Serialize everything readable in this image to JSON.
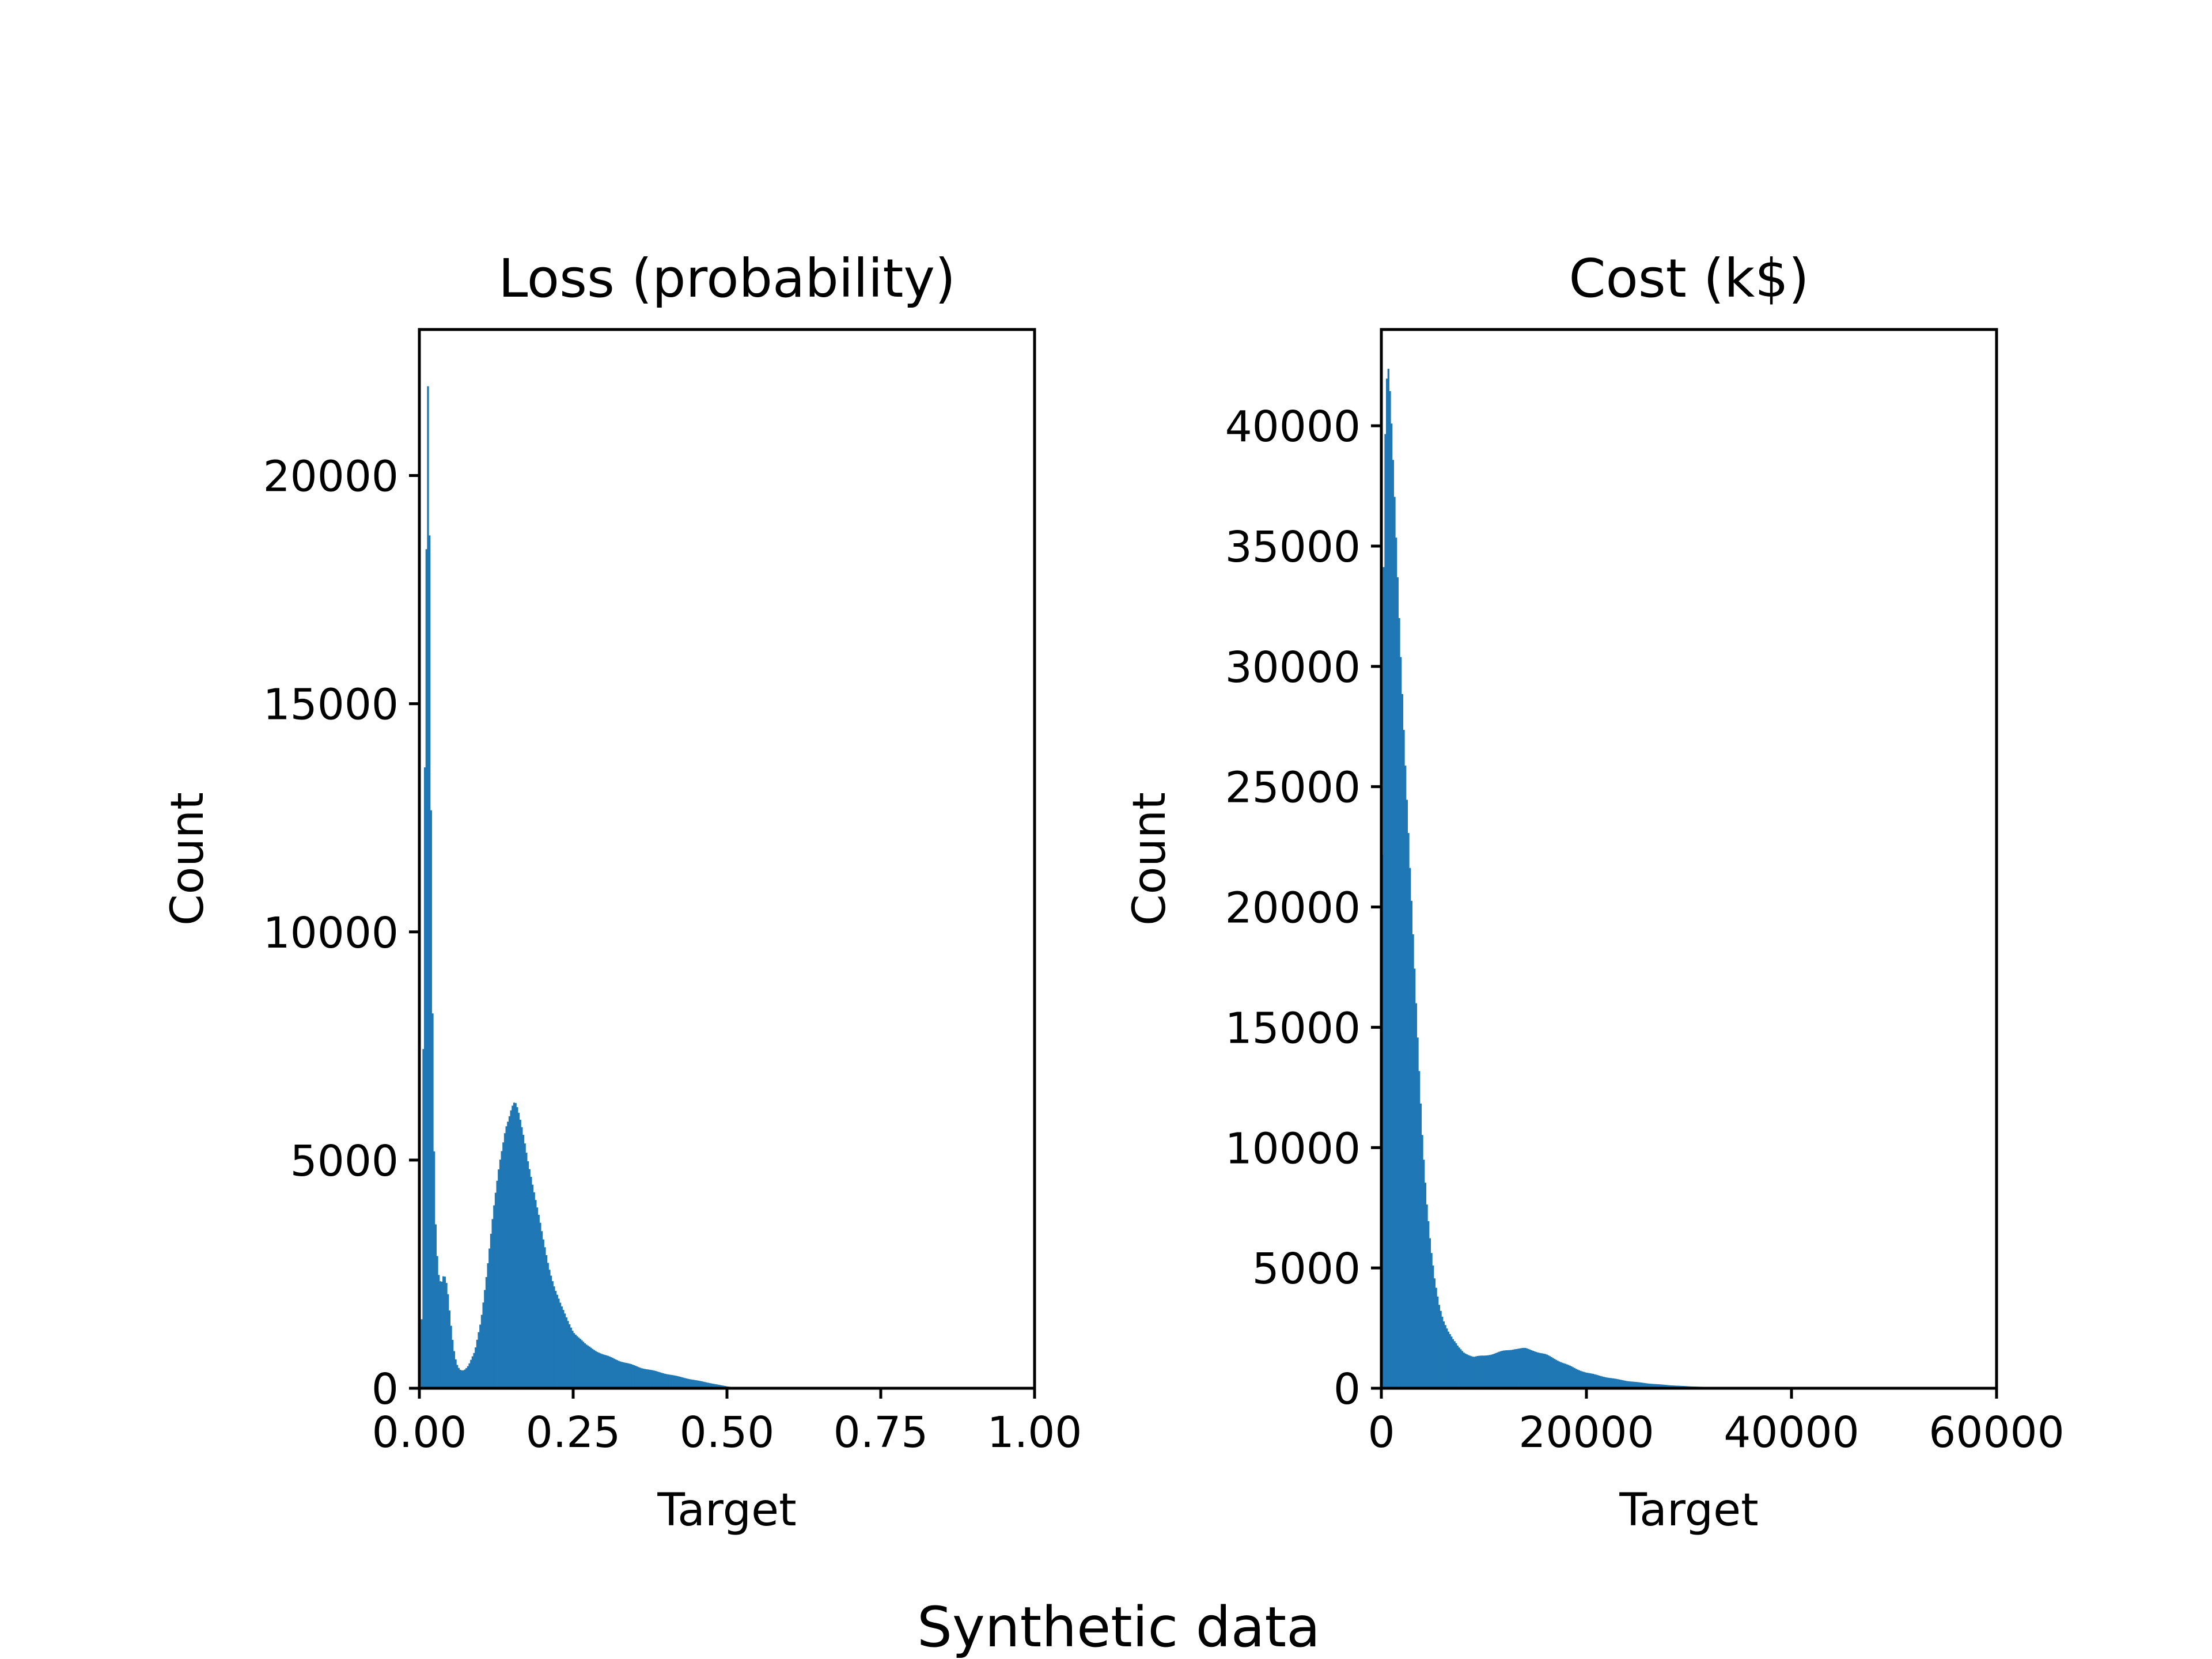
{
  "figure": {
    "suptitle": "Synthetic data",
    "background": "#ffffff",
    "bar_color": "#1f77b4"
  },
  "chart_data": [
    {
      "type": "histogram",
      "title": "Loss (probability)",
      "xlabel": "Target",
      "ylabel": "Count",
      "xlim": [
        0,
        1
      ],
      "ylim": [
        0,
        23200
      ],
      "xticks": [
        0.0,
        0.25,
        0.5,
        0.75,
        1.0
      ],
      "xtick_labels": [
        "0.00",
        "0.25",
        "0.50",
        "0.75",
        "1.00"
      ],
      "yticks": [
        0,
        5000,
        10000,
        15000,
        20000
      ],
      "ytick_labels": [
        "0",
        "5000",
        "10000",
        "15000",
        "20000"
      ],
      "grid": false,
      "bin_width": 0.0025,
      "profile": [
        [
          0.0,
          0
        ],
        [
          0.003,
          0
        ],
        [
          0.005,
          4000
        ],
        [
          0.008,
          12000
        ],
        [
          0.011,
          17500
        ],
        [
          0.013,
          22000
        ],
        [
          0.015,
          21000
        ],
        [
          0.017,
          17000
        ],
        [
          0.019,
          12000
        ],
        [
          0.022,
          7000
        ],
        [
          0.025,
          4000
        ],
        [
          0.03,
          2600
        ],
        [
          0.035,
          2300
        ],
        [
          0.04,
          2500
        ],
        [
          0.045,
          2200
        ],
        [
          0.05,
          1500
        ],
        [
          0.055,
          900
        ],
        [
          0.06,
          550
        ],
        [
          0.065,
          420
        ],
        [
          0.07,
          390
        ],
        [
          0.075,
          420
        ],
        [
          0.08,
          500
        ],
        [
          0.09,
          800
        ],
        [
          0.1,
          1500
        ],
        [
          0.11,
          2600
        ],
        [
          0.12,
          3800
        ],
        [
          0.13,
          4900
        ],
        [
          0.14,
          5800
        ],
        [
          0.15,
          6150
        ],
        [
          0.155,
          6200
        ],
        [
          0.16,
          6000
        ],
        [
          0.17,
          5500
        ],
        [
          0.18,
          4800
        ],
        [
          0.19,
          4000
        ],
        [
          0.2,
          3300
        ],
        [
          0.21,
          2700
        ],
        [
          0.22,
          2200
        ],
        [
          0.23,
          1800
        ],
        [
          0.24,
          1500
        ],
        [
          0.25,
          1250
        ],
        [
          0.27,
          950
        ],
        [
          0.3,
          730
        ],
        [
          0.33,
          580
        ],
        [
          0.36,
          450
        ],
        [
          0.4,
          320
        ],
        [
          0.44,
          200
        ],
        [
          0.47,
          120
        ],
        [
          0.5,
          40
        ],
        [
          0.52,
          10
        ],
        [
          0.55,
          0
        ],
        [
          1.0,
          0
        ]
      ]
    },
    {
      "type": "histogram",
      "title": "Cost (k$)",
      "xlabel": "Target",
      "ylabel": "Count",
      "xlim": [
        0,
        60000
      ],
      "ylim": [
        0,
        44000
      ],
      "xticks": [
        0,
        20000,
        40000,
        60000
      ],
      "xtick_labels": [
        "0",
        "20000",
        "40000",
        "60000"
      ],
      "yticks": [
        0,
        5000,
        10000,
        15000,
        20000,
        25000,
        30000,
        35000,
        40000
      ],
      "ytick_labels": [
        "0",
        "5000",
        "10000",
        "15000",
        "20000",
        "25000",
        "30000",
        "35000",
        "40000"
      ],
      "grid": false,
      "bin_width": 150,
      "profile": [
        [
          0,
          0
        ],
        [
          50,
          20000
        ],
        [
          200,
          33000
        ],
        [
          400,
          40000
        ],
        [
          600,
          42000
        ],
        [
          800,
          41000
        ],
        [
          1000,
          39500
        ],
        [
          1300,
          37000
        ],
        [
          1600,
          34000
        ],
        [
          2000,
          29500
        ],
        [
          2400,
          25000
        ],
        [
          2800,
          21000
        ],
        [
          3200,
          17500
        ],
        [
          3600,
          14000
        ],
        [
          4000,
          10500
        ],
        [
          4400,
          7800
        ],
        [
          4800,
          5800
        ],
        [
          5200,
          4400
        ],
        [
          5600,
          3500
        ],
        [
          6000,
          2900
        ],
        [
          6500,
          2400
        ],
        [
          7000,
          2000
        ],
        [
          7500,
          1700
        ],
        [
          8000,
          1500
        ],
        [
          9000,
          1300
        ],
        [
          10000,
          1350
        ],
        [
          11000,
          1450
        ],
        [
          12000,
          1550
        ],
        [
          13000,
          1650
        ],
        [
          14000,
          1650
        ],
        [
          15000,
          1550
        ],
        [
          16000,
          1400
        ],
        [
          17000,
          1200
        ],
        [
          18000,
          1000
        ],
        [
          19000,
          800
        ],
        [
          20000,
          650
        ],
        [
          22000,
          450
        ],
        [
          24000,
          300
        ],
        [
          26000,
          200
        ],
        [
          28000,
          130
        ],
        [
          30000,
          80
        ],
        [
          32000,
          50
        ],
        [
          34000,
          25
        ],
        [
          36000,
          10
        ],
        [
          38000,
          0
        ],
        [
          60000,
          0
        ]
      ]
    }
  ]
}
